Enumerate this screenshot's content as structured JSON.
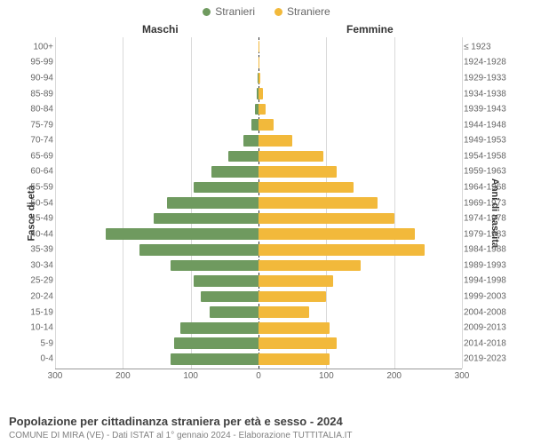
{
  "legend": {
    "male": {
      "label": "Stranieri",
      "color": "#6f9a5f"
    },
    "female": {
      "label": "Straniere",
      "color": "#f2b93b"
    }
  },
  "headers": {
    "male": "Maschi",
    "female": "Femmine"
  },
  "axes": {
    "y_left_title": "Fasce di età",
    "y_right_title": "Anni di nascita",
    "x_max": 300,
    "x_tick_step": 100,
    "x_ticks_left": [
      "300",
      "200",
      "100"
    ],
    "x_ticks_right": [
      "100",
      "200",
      "300"
    ],
    "x_center": "0",
    "grid_color": "#d9d9d9",
    "center_line_color": "#333333"
  },
  "chart": {
    "type": "population-pyramid",
    "rows": [
      {
        "age": "100+",
        "birth": "≤ 1923",
        "m": 0,
        "f": 1
      },
      {
        "age": "95-99",
        "birth": "1924-1928",
        "m": 0,
        "f": 1
      },
      {
        "age": "90-94",
        "birth": "1929-1933",
        "m": 1,
        "f": 3
      },
      {
        "age": "85-89",
        "birth": "1934-1938",
        "m": 2,
        "f": 6
      },
      {
        "age": "80-84",
        "birth": "1939-1943",
        "m": 5,
        "f": 10
      },
      {
        "age": "75-79",
        "birth": "1944-1948",
        "m": 10,
        "f": 22
      },
      {
        "age": "70-74",
        "birth": "1949-1953",
        "m": 22,
        "f": 50
      },
      {
        "age": "65-69",
        "birth": "1954-1958",
        "m": 45,
        "f": 95
      },
      {
        "age": "60-64",
        "birth": "1959-1963",
        "m": 70,
        "f": 115
      },
      {
        "age": "55-59",
        "birth": "1964-1968",
        "m": 95,
        "f": 140
      },
      {
        "age": "50-54",
        "birth": "1969-1973",
        "m": 135,
        "f": 175
      },
      {
        "age": "45-49",
        "birth": "1974-1978",
        "m": 155,
        "f": 200
      },
      {
        "age": "40-44",
        "birth": "1979-1983",
        "m": 225,
        "f": 230
      },
      {
        "age": "35-39",
        "birth": "1984-1988",
        "m": 175,
        "f": 245
      },
      {
        "age": "30-34",
        "birth": "1989-1993",
        "m": 130,
        "f": 150
      },
      {
        "age": "25-29",
        "birth": "1994-1998",
        "m": 95,
        "f": 110
      },
      {
        "age": "20-24",
        "birth": "1999-2003",
        "m": 85,
        "f": 100
      },
      {
        "age": "15-19",
        "birth": "2004-2008",
        "m": 72,
        "f": 75
      },
      {
        "age": "10-14",
        "birth": "2009-2013",
        "m": 115,
        "f": 105
      },
      {
        "age": "5-9",
        "birth": "2014-2018",
        "m": 125,
        "f": 115
      },
      {
        "age": "0-4",
        "birth": "2019-2023",
        "m": 130,
        "f": 105
      }
    ]
  },
  "footer": {
    "title": "Popolazione per cittadinanza straniera per età e sesso - 2024",
    "sub": "COMUNE DI MIRA (VE) - Dati ISTAT al 1° gennaio 2024 - Elaborazione TUTTITALIA.IT"
  }
}
